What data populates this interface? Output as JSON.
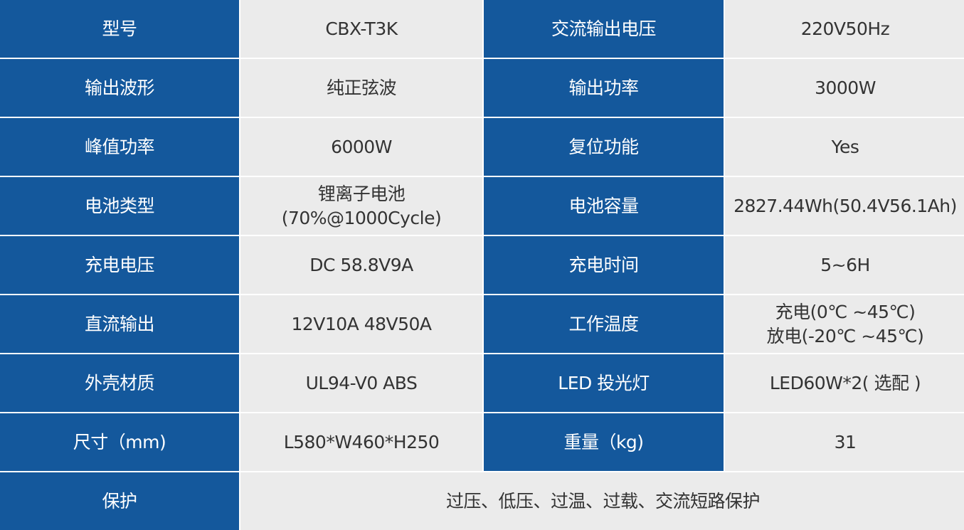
{
  "colors": {
    "label_bg": "#14589c",
    "value_bg": "#ebebeb",
    "label_text": "#ffffff",
    "value_text": "#333333"
  },
  "rows": [
    [
      {
        "label": "型号",
        "value": [
          "CBX-T3K"
        ]
      },
      {
        "label": "交流输出电压",
        "value": [
          "220V50Hz"
        ]
      }
    ],
    [
      {
        "label": "输出波形",
        "value": [
          "纯正弦波"
        ]
      },
      {
        "label": "输出功率",
        "value": [
          "3000W"
        ]
      }
    ],
    [
      {
        "label": "峰值功率",
        "value": [
          "6000W"
        ]
      },
      {
        "label": "复位功能",
        "value": [
          "Yes"
        ]
      }
    ],
    [
      {
        "label": "电池类型",
        "value": [
          "锂离子电池",
          "(70%@1000Cycle)"
        ]
      },
      {
        "label": "电池容量",
        "value": [
          "2827.44Wh(50.4V56.1Ah)"
        ]
      }
    ],
    [
      {
        "label": "充电电压",
        "value": [
          "DC 58.8V9A"
        ]
      },
      {
        "label": "充电时间",
        "value": [
          "5~6H"
        ]
      }
    ],
    [
      {
        "label": "直流输出",
        "value": [
          "12V10A 48V50A"
        ]
      },
      {
        "label": "工作温度",
        "value": [
          "充电(0℃ ~45℃)",
          "放电(-20℃ ~45℃)"
        ]
      }
    ],
    [
      {
        "label": "外壳材质",
        "value": [
          "UL94-V0 ABS"
        ]
      },
      {
        "label": "LED 投光灯",
        "value": [
          "LED60W*2( 选配 )"
        ]
      }
    ],
    [
      {
        "label": "尺寸（mm)",
        "value": [
          "L580*W460*H250"
        ]
      },
      {
        "label": "重量（kg)",
        "value": [
          "31"
        ]
      }
    ]
  ],
  "protection": {
    "label": "保护",
    "value": "过压、低压、过温、过载、交流短路保护"
  }
}
